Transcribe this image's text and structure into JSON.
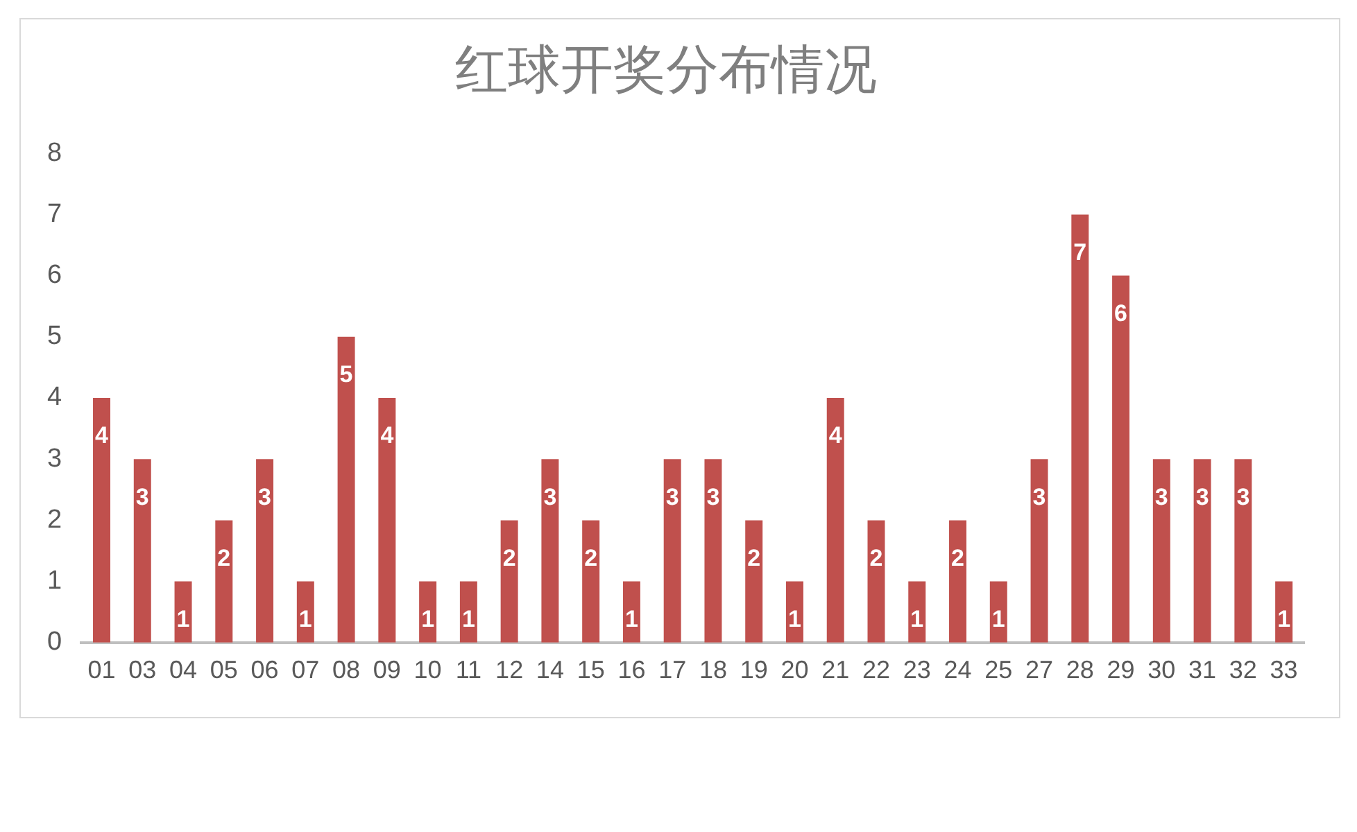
{
  "chart_data": {
    "type": "bar",
    "title": "红球开奖分布情况",
    "categories": [
      "01",
      "03",
      "04",
      "05",
      "06",
      "07",
      "08",
      "09",
      "10",
      "11",
      "12",
      "14",
      "15",
      "16",
      "17",
      "18",
      "19",
      "20",
      "21",
      "22",
      "23",
      "24",
      "25",
      "27",
      "28",
      "29",
      "30",
      "31",
      "32",
      "33"
    ],
    "values": [
      4,
      3,
      1,
      2,
      3,
      1,
      5,
      4,
      1,
      1,
      2,
      3,
      2,
      1,
      3,
      3,
      2,
      1,
      4,
      2,
      1,
      2,
      1,
      3,
      7,
      6,
      3,
      3,
      3,
      1
    ],
    "color": "#c0504d",
    "ylim": [
      0,
      8
    ],
    "yticks": [
      0,
      1,
      2,
      3,
      4,
      5,
      6,
      7,
      8
    ],
    "grid": false,
    "legend": false,
    "data_labels": true
  }
}
